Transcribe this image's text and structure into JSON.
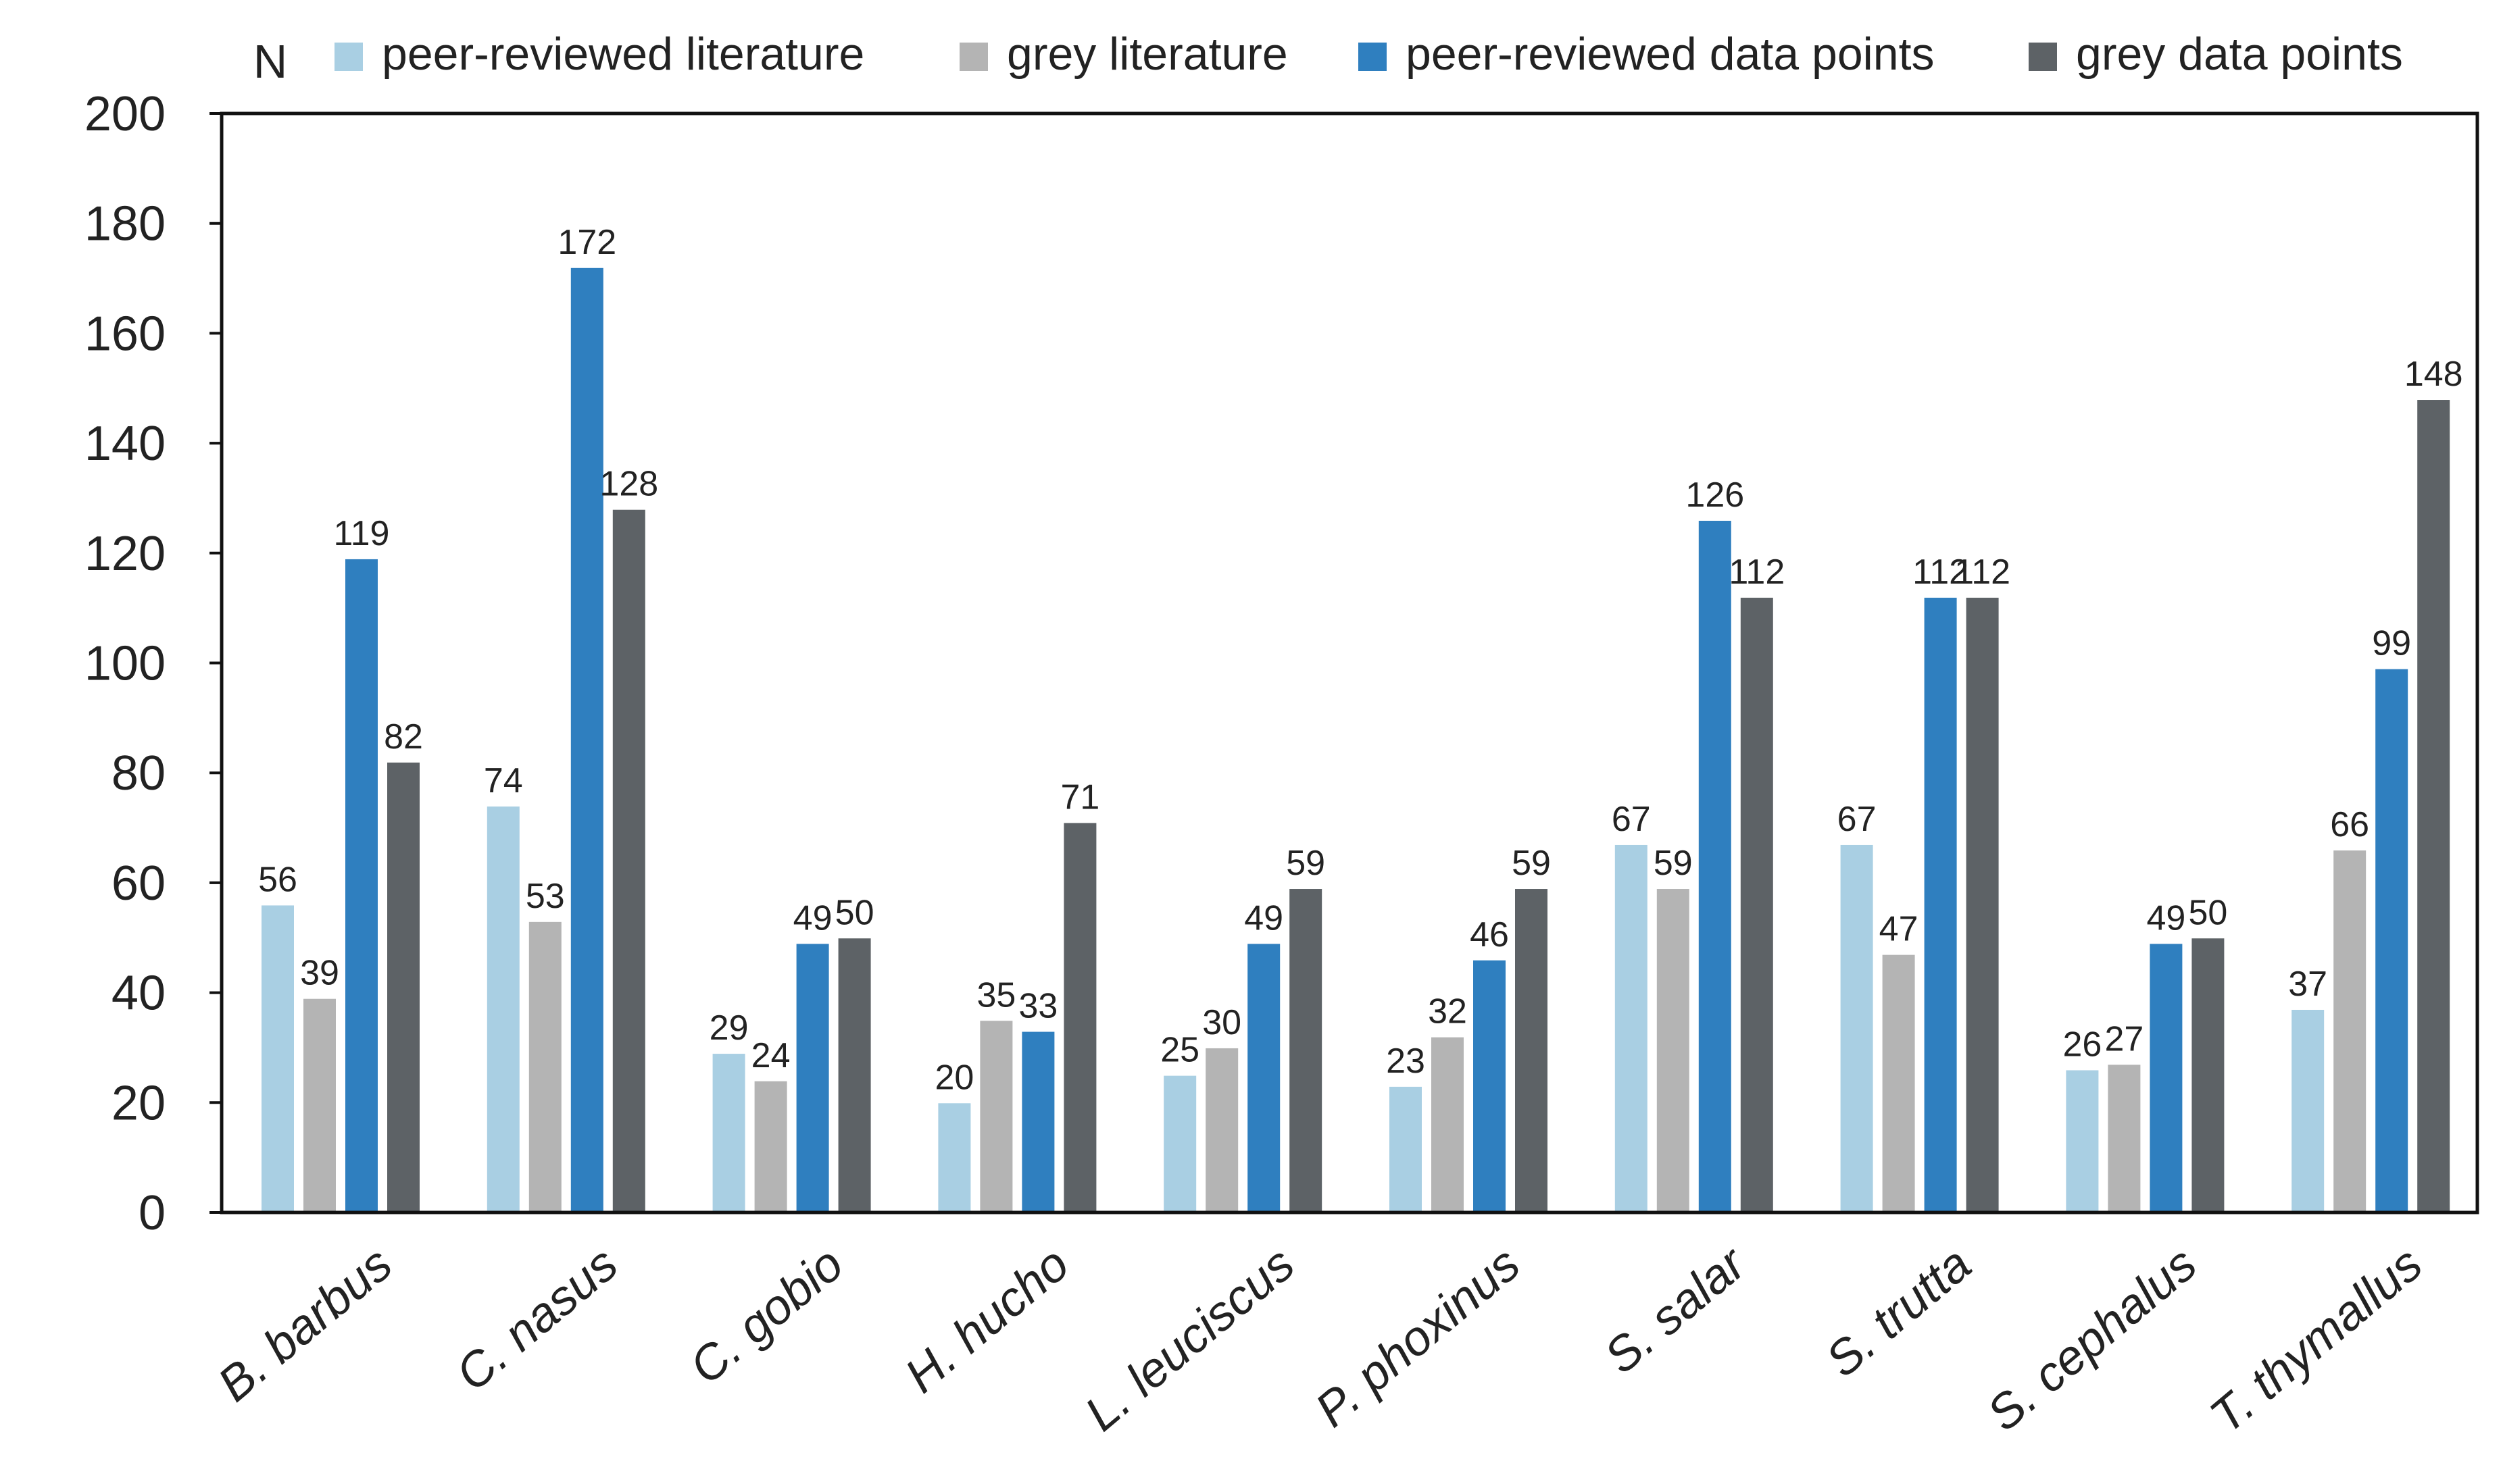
{
  "chart_data": {
    "type": "bar",
    "title": "",
    "xlabel": "",
    "ylabel": "N",
    "ylim": [
      0,
      200
    ],
    "yticks": [
      0,
      20,
      40,
      60,
      80,
      100,
      120,
      140,
      160,
      180,
      200
    ],
    "grid": false,
    "legend_position": "top",
    "categories": [
      "B. barbus",
      "C. nasus",
      "C. gobio",
      "H. hucho",
      "L. leuciscus",
      "P. phoxinus",
      "S. salar",
      "S. trutta",
      "S. cephalus",
      "T. thymallus"
    ],
    "series": [
      {
        "name": "peer-reviewed literature",
        "color": "#a9cfe3",
        "values": [
          56,
          74,
          29,
          20,
          25,
          23,
          67,
          67,
          26,
          37
        ]
      },
      {
        "name": "grey literature",
        "color": "#b4b4b4",
        "values": [
          39,
          53,
          24,
          35,
          30,
          32,
          59,
          47,
          27,
          66
        ]
      },
      {
        "name": "peer-reviewed data points",
        "color": "#2f7fbf",
        "values": [
          119,
          172,
          49,
          33,
          49,
          46,
          126,
          112,
          49,
          99
        ]
      },
      {
        "name": "grey data points",
        "color": "#5d6266",
        "values": [
          82,
          128,
          50,
          71,
          59,
          59,
          112,
          112,
          50,
          148
        ]
      }
    ]
  }
}
